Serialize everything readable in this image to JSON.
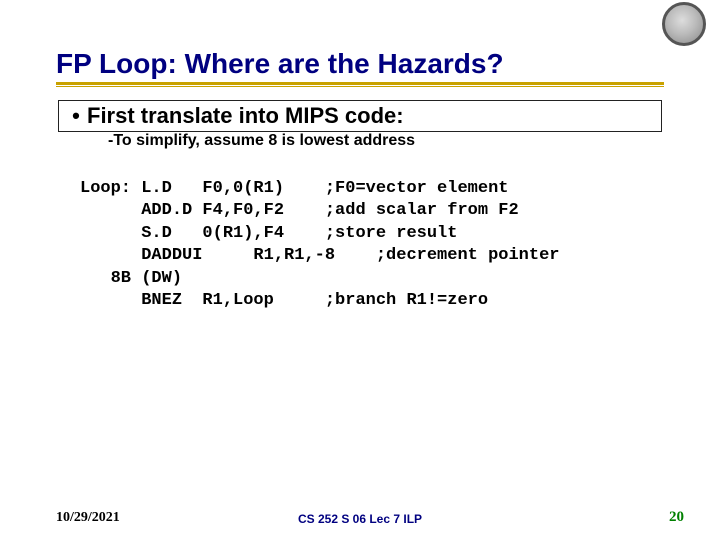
{
  "title": "FP Loop: Where are the Hazards?",
  "bullet1": {
    "marker": "•",
    "text": "First translate into MIPS code:"
  },
  "subbullet": {
    "marker": "-",
    "text": "To simplify, assume 8 is lowest address"
  },
  "code": "Loop: L.D   F0,0(R1)    ;F0=vector element\n      ADD.D F4,F0,F2    ;add scalar from F2\n      S.D   0(R1),F4    ;store result\n      DADDUI     R1,R1,-8    ;decrement pointer\n   8B (DW)\n      BNEZ  R1,Loop     ;branch R1!=zero",
  "footer": {
    "date": "10/29/2021",
    "center": "CS 252 S 06 Lec 7 ILP",
    "pagenum": "20"
  },
  "colors": {
    "title_color": "#000080",
    "underline_color": "#c9a200",
    "pagenum_color": "#008000",
    "text_color": "#000000",
    "background": "#ffffff"
  },
  "typography": {
    "title_fontsize": 28,
    "bullet_fontsize": 22,
    "subbullet_fontsize": 16,
    "code_fontsize": 17,
    "footer_date_fontsize": 14,
    "footer_center_fontsize": 12,
    "footer_num_fontsize": 15
  }
}
